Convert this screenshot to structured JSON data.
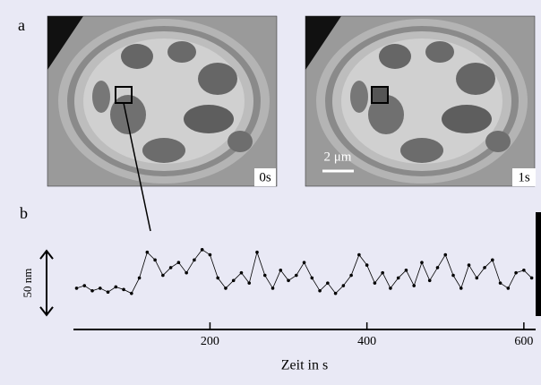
{
  "panel_a": {
    "label": "a",
    "images": [
      {
        "time_label": "0s"
      },
      {
        "time_label": "1s"
      }
    ],
    "scale_bar": "2 μm"
  },
  "chart_data": {
    "type": "scatter",
    "panel_label": "b",
    "x_label": "Zeit in s",
    "color": "#000000",
    "x": [
      30,
      40,
      50,
      60,
      70,
      80,
      90,
      100,
      110,
      120,
      130,
      140,
      150,
      160,
      170,
      180,
      190,
      200,
      210,
      220,
      230,
      240,
      250,
      260,
      270,
      280,
      290,
      300,
      310,
      320,
      330,
      340,
      350,
      360,
      370,
      380,
      390,
      400,
      410,
      420,
      430,
      440,
      450,
      460,
      470,
      480,
      490,
      500,
      510,
      520,
      530,
      540,
      550,
      560,
      570,
      580,
      590,
      600,
      610
    ],
    "values": [
      30,
      32,
      28,
      30,
      27,
      31,
      29,
      26,
      38,
      58,
      52,
      40,
      46,
      50,
      42,
      52,
      60,
      56,
      38,
      30,
      36,
      42,
      34,
      58,
      40,
      30,
      44,
      36,
      40,
      50,
      38,
      28,
      34,
      26,
      32,
      40,
      56,
      48,
      34,
      42,
      30,
      38,
      44,
      32,
      50,
      36,
      46,
      56,
      40,
      30,
      48,
      38,
      46,
      52,
      34,
      30,
      42,
      44,
      38
    ],
    "xlim": [
      26,
      615
    ],
    "ylim": [
      0,
      94
    ],
    "xticks": [
      200,
      400,
      600
    ],
    "scale_bar": {
      "value": 50,
      "label": "50 nm"
    }
  }
}
